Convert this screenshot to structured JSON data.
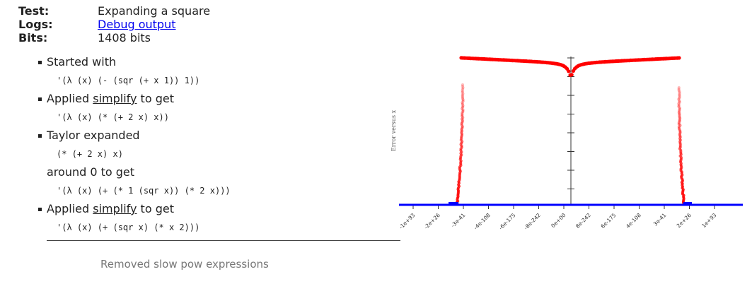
{
  "meta": {
    "test_key": "Test:",
    "test_val": "Expanding a square",
    "logs_key": "Logs:",
    "logs_val": "Debug output",
    "bits_key": "Bits:",
    "bits_val": "1408 bits"
  },
  "steps": [
    {
      "label": "Started with",
      "code": "'(λ (x) (- (sqr (+ x 1)) 1))"
    },
    {
      "label_pre": "Applied ",
      "label_link": "simplify",
      "label_post": " to get",
      "code": "'(λ (x) (* (+ 2 x) x))"
    },
    {
      "label": "Taylor expanded",
      "code": "(* (+ 2 x) x)",
      "extra": "around 0 to get",
      "code2": "'(λ (x) (+ (* 1 (sqr x)) (* 2 x)))"
    },
    {
      "label_pre": "Applied ",
      "label_link": "simplify",
      "label_post": " to get",
      "code": "'(λ (x) (+ (sqr x) (* x 2)))"
    }
  ],
  "footer": "Removed slow pow expressions",
  "chart_data": {
    "type": "scatter",
    "title": "",
    "xlabel": "",
    "ylabel": "Error versus x",
    "x_tick_labels": [
      "-1e+93",
      "-2e+26",
      "-3e-41",
      "-4e-108",
      "-6e-175",
      "-8e-242",
      "0e+00",
      "8e-242",
      "6e-175",
      "4e-108",
      "3e-41",
      "2e+26",
      "1e+93"
    ],
    "series": [
      {
        "color": "#ff0000",
        "description": "input error"
      },
      {
        "color": "#0000ff",
        "description": "output error"
      }
    ],
    "colors": {
      "red": "#ff0000",
      "blue": "#0000ff"
    }
  }
}
